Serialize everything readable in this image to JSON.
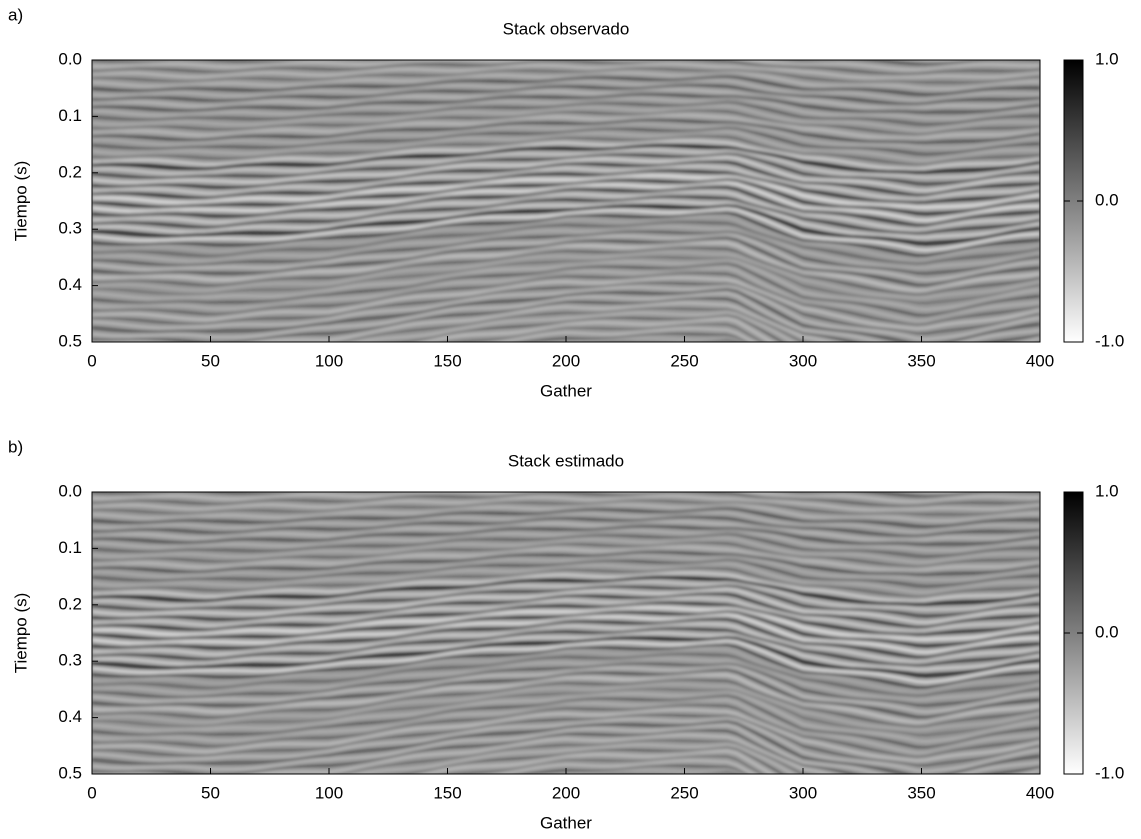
{
  "chart_data": [
    {
      "type": "heatmap",
      "panel_label": "a)",
      "title": "Stack observado",
      "xlabel": "Gather",
      "ylabel": "Tiempo (s)",
      "xlim": [
        0,
        400
      ],
      "xticks": [
        0,
        50,
        100,
        150,
        200,
        250,
        300,
        350,
        400
      ],
      "ylim": [
        0,
        0.5
      ],
      "y_inverted": true,
      "yticks": [
        {
          "value": 0,
          "label": "0.0"
        },
        0.1,
        0.2,
        0.3,
        0.4,
        0.5
      ],
      "colormap": [
        "#ffffff",
        "#000000"
      ],
      "clim": [
        -1,
        1
      ],
      "cticks": [
        {
          "value": -1,
          "label": "-1.0"
        },
        {
          "value": 0,
          "label": "0.0"
        },
        {
          "value": 1,
          "label": "1.0"
        }
      ]
    },
    {
      "type": "heatmap",
      "panel_label": "b)",
      "title": "Stack estimado",
      "xlabel": "Gather",
      "ylabel": "Tiempo (s)",
      "xlim": [
        0,
        400
      ],
      "xticks": [
        0,
        50,
        100,
        150,
        200,
        250,
        300,
        350,
        400
      ],
      "ylim": [
        0,
        0.5
      ],
      "y_inverted": true,
      "yticks": [
        {
          "value": 0,
          "label": "0.0"
        },
        0.1,
        0.2,
        0.3,
        0.4,
        0.5
      ],
      "colormap": [
        "#ffffff",
        "#000000"
      ],
      "clim": [
        -1,
        1
      ],
      "cticks": [
        {
          "value": -1,
          "label": "-1.0"
        },
        {
          "value": 0,
          "label": "0.0"
        },
        {
          "value": 1,
          "label": "1.0"
        }
      ]
    }
  ]
}
